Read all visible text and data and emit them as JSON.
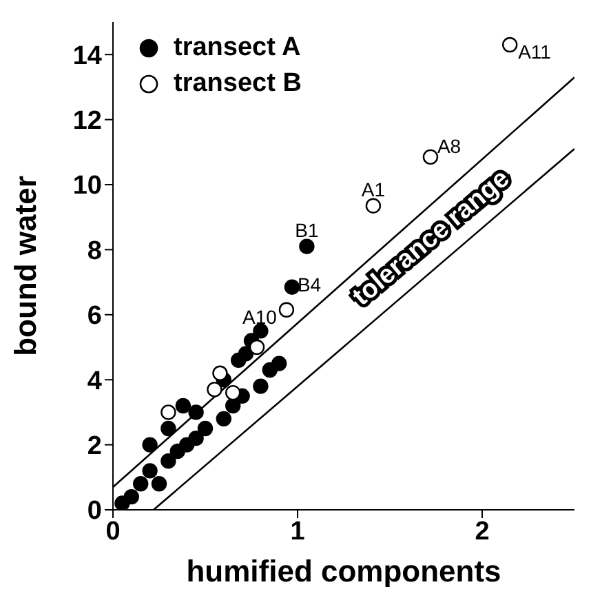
{
  "chart_data": {
    "type": "scatter",
    "xlabel": "humified components",
    "ylabel": "bound water",
    "xlim": [
      0,
      2.5
    ],
    "xticks": [
      0,
      1,
      2
    ],
    "ylim": [
      0,
      15
    ],
    "yticks": [
      0,
      2,
      4,
      6,
      8,
      10,
      12,
      14
    ],
    "grid": false,
    "legend": "top left",
    "marker": "circle",
    "series": [
      {
        "name": "transect A",
        "color": "#000000",
        "x": [
          1.05,
          0.97,
          0.2,
          0.3,
          0.38,
          0.45,
          0.6,
          0.68,
          0.75,
          0.8,
          0.72,
          0.85,
          0.5,
          0.4,
          0.3,
          0.15,
          0.1,
          0.05,
          0.25,
          0.6,
          0.7,
          0.9,
          0.2,
          0.35,
          0.45,
          0.65,
          0.8
        ],
        "values": [
          8.1,
          6.85,
          2.0,
          2.5,
          3.2,
          3.0,
          4.0,
          4.6,
          5.2,
          5.5,
          4.8,
          4.3,
          2.5,
          2.0,
          1.5,
          0.8,
          0.4,
          0.2,
          0.8,
          2.8,
          3.5,
          4.5,
          1.2,
          1.8,
          2.2,
          3.2,
          3.8
        ]
      },
      {
        "name": "transect B",
        "color": "#ffffff",
        "x": [
          2.15,
          1.72,
          1.41,
          0.94,
          0.3,
          0.55,
          0.65,
          0.78,
          0.58
        ],
        "values": [
          14.3,
          10.85,
          9.35,
          6.15,
          3.0,
          3.7,
          3.6,
          5.0,
          4.2
        ]
      },
      {
        "type": "line",
        "marker": "none",
        "color": "#000000",
        "x": [
          0,
          2.5
        ],
        "values": [
          0.7,
          13.3
        ]
      },
      {
        "type": "line",
        "marker": "none",
        "color": "#000000",
        "x": [
          0.22,
          2.5
        ],
        "values": [
          0,
          11.1
        ]
      }
    ],
    "annotations": [
      {
        "text": "A11",
        "x": 2.15,
        "y": 14.3
      },
      {
        "text": "A8",
        "x": 1.72,
        "y": 10.85
      },
      {
        "text": "A1",
        "x": 1.41,
        "y": 9.35
      },
      {
        "text": "B1",
        "x": 1.05,
        "y": 8.1
      },
      {
        "text": "B4",
        "x": 0.97,
        "y": 6.85
      },
      {
        "text": "A10",
        "x": 0.94,
        "y": 6.15
      },
      "tolerance range"
    ]
  }
}
